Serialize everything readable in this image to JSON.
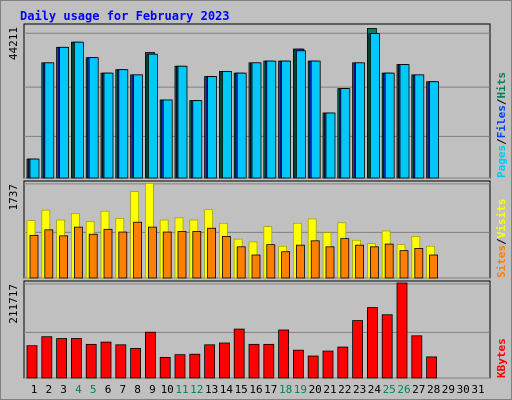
{
  "title": "Daily usage for February 2023",
  "colors": {
    "background": "#c0c0c0",
    "title": "#0000ff",
    "hits": "#00805c",
    "files": "#0040ff",
    "pages": "#00c8f8",
    "visits": "#ffff00",
    "sites": "#ff8000",
    "kbytes": "#ff0000",
    "weekend_day": "#00805c",
    "weekday": "#000000"
  },
  "chart_data": [
    {
      "type": "bar",
      "name": "requests",
      "ymax_label": "44211",
      "ymax": 44211,
      "legend": [
        "Pages",
        "Files",
        "Hits"
      ],
      "days": [
        1,
        2,
        3,
        4,
        5,
        6,
        7,
        8,
        9,
        10,
        11,
        12,
        13,
        14,
        15,
        16,
        17,
        18,
        19,
        20,
        21,
        22,
        23,
        24,
        25,
        26,
        27,
        28,
        29,
        30,
        31
      ],
      "series": [
        {
          "name": "Hits",
          "values": [
            5500,
            33500,
            38000,
            39500,
            35000,
            30500,
            31500,
            30000,
            36500,
            22700,
            32500,
            22500,
            29500,
            31000,
            30500,
            33500,
            34000,
            34000,
            37500,
            34000,
            18900,
            26000,
            33500,
            43500,
            30500,
            33000,
            30000,
            28000
          ]
        },
        {
          "name": "Files",
          "values": [
            5500,
            33500,
            38000,
            39500,
            35000,
            30500,
            31500,
            30000,
            36000,
            22700,
            32500,
            22500,
            29500,
            31000,
            30500,
            33500,
            34000,
            34000,
            37500,
            34000,
            18900,
            26000,
            33500,
            42000,
            30500,
            33000,
            30000,
            28000
          ]
        },
        {
          "name": "Pages",
          "values": [
            5500,
            33500,
            38000,
            39500,
            35000,
            30500,
            31500,
            30000,
            36000,
            22700,
            32500,
            22500,
            29500,
            31000,
            30500,
            33500,
            34000,
            34000,
            37000,
            34000,
            18900,
            26000,
            33500,
            42000,
            30500,
            33000,
            30000,
            28000
          ]
        }
      ]
    },
    {
      "type": "bar",
      "name": "visitors",
      "ymax_label": "1737",
      "ymax": 1737,
      "legend": [
        "Sites",
        "Visits"
      ],
      "series": [
        {
          "name": "Visits",
          "values": [
            1050,
            1240,
            1060,
            1180,
            1030,
            1220,
            1090,
            1580,
            1730,
            1060,
            1100,
            1060,
            1250,
            1000,
            710,
            660,
            940,
            580,
            1000,
            1080,
            830,
            1010,
            690,
            630,
            860,
            610,
            760,
            580
          ]
        },
        {
          "name": "Sites",
          "values": [
            780,
            880,
            770,
            930,
            800,
            890,
            840,
            1020,
            930,
            840,
            850,
            850,
            910,
            760,
            570,
            420,
            610,
            480,
            600,
            680,
            570,
            720,
            600,
            570,
            620,
            500,
            540,
            420
          ]
        }
      ]
    },
    {
      "type": "bar",
      "name": "kbytes",
      "ymax_label": "211717",
      "ymax": 211717,
      "legend": [
        "KBytes"
      ],
      "series": [
        {
          "name": "KBytes",
          "values": [
            72000,
            92000,
            88000,
            88000,
            75000,
            80000,
            74000,
            66000,
            102000,
            46000,
            52000,
            53000,
            74000,
            78000,
            109000,
            75000,
            75000,
            107000,
            62000,
            49000,
            60000,
            69000,
            128000,
            157000,
            141000,
            211717,
            94000,
            47000
          ]
        }
      ]
    }
  ]
}
